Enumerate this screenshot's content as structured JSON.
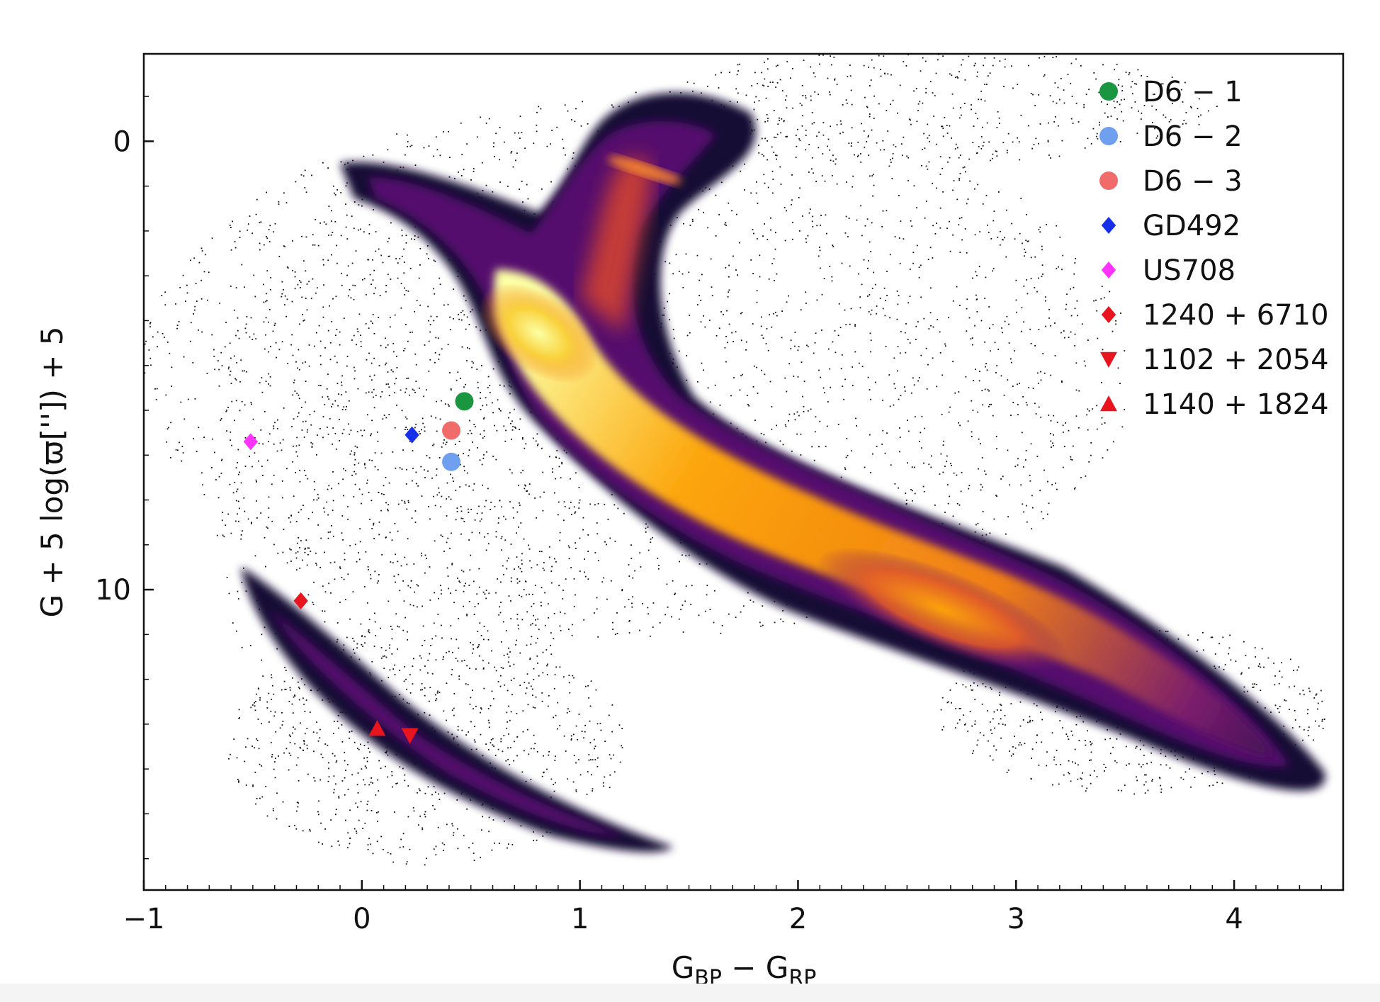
{
  "chart_data": {
    "type": "scatter",
    "xlabel_main": "G",
    "xlabel_sub1": "BP",
    "xlabel_mid": " − G",
    "xlabel_sub2": "RP",
    "ylabel": "G + 5 log(ϖ['']) + 5",
    "xlim": [
      -1,
      4.5
    ],
    "ylim": [
      16.7,
      -1.95
    ],
    "y_inverted": true,
    "x_ticks": [
      {
        "value": -1,
        "label": "−1"
      },
      {
        "value": 0,
        "label": "0"
      },
      {
        "value": 1,
        "label": "1"
      },
      {
        "value": 2,
        "label": "2"
      },
      {
        "value": 3,
        "label": "3"
      },
      {
        "value": 4,
        "label": "4"
      }
    ],
    "y_ticks": [
      {
        "value": 0,
        "label": "0"
      },
      {
        "value": 10,
        "label": "10"
      }
    ],
    "legend_position": "top-right",
    "background": "Gaia HR-diagram density (inferno colormap): main sequence, giant branch and white-dwarf sequence",
    "series": [
      {
        "name": "D6 − 1",
        "marker": "circle",
        "color": "#1a9641",
        "x": 0.47,
        "y": 5.8
      },
      {
        "name": "D6 − 2",
        "marker": "circle",
        "color": "#6fa0ef",
        "x": 0.41,
        "y": 7.15
      },
      {
        "name": "D6 − 3",
        "marker": "circle",
        "color": "#f26b6b",
        "x": 0.41,
        "y": 6.45
      },
      {
        "name": "GD492",
        "marker": "diamond",
        "color": "#1530e8",
        "x": 0.23,
        "y": 6.55
      },
      {
        "name": "US708",
        "marker": "diamond",
        "color": "#ff33ff",
        "x": -0.51,
        "y": 6.7
      },
      {
        "name": "1240 + 6710",
        "marker": "diamond",
        "color": "#e8141e",
        "x": -0.28,
        "y": 10.25
      },
      {
        "name": "1102 + 2054",
        "marker": "triangle-down",
        "color": "#e8141e",
        "x": 0.22,
        "y": 13.25
      },
      {
        "name": "1140 + 1824",
        "marker": "triangle-up",
        "color": "#e8141e",
        "x": 0.07,
        "y": 13.1
      }
    ]
  }
}
